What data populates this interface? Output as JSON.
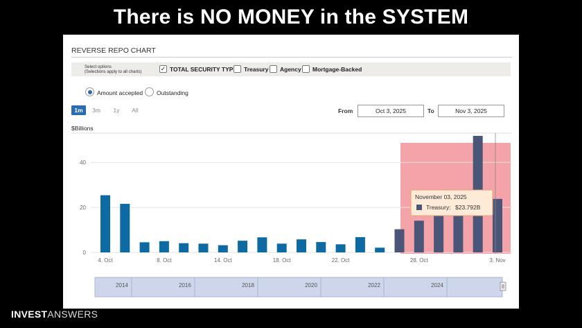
{
  "headline": "There is NO MONEY in the SYSTEM",
  "panel_title": "REVERSE REPO CHART",
  "options": {
    "label_line1": "Select options",
    "label_line2": "(Selections apply to all charts)",
    "checkboxes": [
      {
        "label": "TOTAL SECURITY TYPES",
        "checked": true
      },
      {
        "label": "Treasury",
        "checked": false
      },
      {
        "label": "Agency",
        "checked": false
      },
      {
        "label": "Mortgage-Backed",
        "checked": false
      }
    ]
  },
  "radios": [
    {
      "label": "Amount accepted",
      "selected": true
    },
    {
      "label": "Outstanding",
      "selected": false
    }
  ],
  "range_buttons": [
    "1m",
    "3m",
    "1y",
    "All"
  ],
  "active_range": "1m",
  "date_range": {
    "from_label": "From",
    "from_value": "Oct 3, 2025",
    "to_label": "To",
    "to_value": "Nov 3, 2025"
  },
  "units_label": "$Billions",
  "tooltip": {
    "date": "November 03, 2025",
    "series": "Treasury:",
    "value": "$23.792B"
  },
  "navigator_years": [
    "2014",
    "2016",
    "2018",
    "2020",
    "2022",
    "2024"
  ],
  "brand": {
    "bold": "INVEST",
    "light": "ANSWERS"
  },
  "colors": {
    "bar": "#0d6aa3",
    "highlighted_bar": "#4a5577",
    "highlight_overlay": "#f4a3a8",
    "navigator": "#cdd6ea",
    "tooltip_bg": "#fdebd8",
    "tooltip_border": "#e8a273"
  },
  "chart_data": {
    "type": "bar",
    "ylabel": "$Billions",
    "ylim": [
      0,
      53
    ],
    "yticks": [
      0,
      20,
      40
    ],
    "x_tick_labels": [
      "4. Oct",
      "8. Oct",
      "14. Oct",
      "18. Oct",
      "22. Oct",
      "28. Oct",
      "3. Nov"
    ],
    "x_tick_bar_index": [
      0,
      3,
      6,
      9,
      12,
      16,
      20
    ],
    "values": [
      25.4,
      21.6,
      4.5,
      5.0,
      4.1,
      3.9,
      3.2,
      5.2,
      6.7,
      3.9,
      5.8,
      4.6,
      3.6,
      6.8,
      2.1,
      10.3,
      14.1,
      17.4,
      19.2,
      51.8,
      23.792
    ],
    "highlight_from_index": 15,
    "grid": true,
    "legend": "none"
  }
}
